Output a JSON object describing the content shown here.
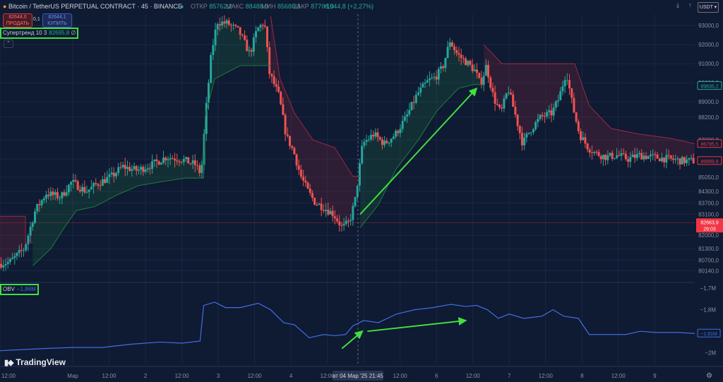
{
  "header": {
    "title": "Bitcoin / TetherUS PERPETUAL CONTRACT · 45 · BINANCE",
    "open_label": "ОТКР",
    "open_value": "85762,2",
    "high_label": "МАКС",
    "high_value": "88488,0",
    "low_label": "МИН",
    "low_value": "85686,3",
    "close_label": "ЗАКР",
    "close_value": "87708,0",
    "change": "+1944,8 (+2,27%)"
  },
  "trade": {
    "sell_price": "82644,0",
    "sell_label": "ПРОДАТЬ",
    "spread": "0,1",
    "buy_price": "82644,1",
    "buy_label": "КУПИТЬ"
  },
  "indicators": {
    "supertrend_label": "Супертренд 10 3",
    "supertrend_value": "82695,8",
    "supertrend_symbol": "∅",
    "obv_label": "OBV",
    "obv_value": "−1,86M"
  },
  "currency": "USDT",
  "logo_text": "TradingView",
  "price_axis": {
    "ticks": [
      "93000,0",
      "92000,0",
      "91000,0",
      "90000,0",
      "89000,0",
      "88200,0",
      "87000,0",
      "86000,0",
      "85050,0",
      "84300,0",
      "83700,0",
      "83100,0",
      "82000,0",
      "81300,0",
      "80700,0",
      "80140,0"
    ],
    "tick_values": [
      93000,
      92000,
      91000,
      90000,
      89000,
      88200,
      87000,
      86000,
      85050,
      84300,
      83700,
      83100,
      82000,
      81300,
      80700,
      80140
    ],
    "labels": [
      {
        "text": "89835,2",
        "value": 89835.2,
        "color": "#22ab94"
      },
      {
        "text": "86795,5",
        "value": 86795.5,
        "color": "#f23645"
      },
      {
        "text": "85899,9",
        "value": 85899.9,
        "color": "#f23645"
      }
    ],
    "current_price": "82663,9",
    "current_value": 82663.9,
    "countdown": "26:03",
    "ymin": 79600,
    "ymax": 93600
  },
  "obv_axis": {
    "ticks": [
      "−1,7M",
      "−1,8M",
      "−1,9M",
      "−2M"
    ],
    "tick_values": [
      -1.7,
      -1.8,
      -1.9,
      -2.0
    ],
    "current_label": "−1,91M",
    "current_value": -1.91,
    "ymin": -2.05,
    "ymax": -1.68
  },
  "time_axis": {
    "labels": [
      "12:00",
      "Мар",
      "12:00",
      "2",
      "12:00",
      "3",
      "12:00",
      "4",
      "12:00",
      "5",
      "12:00",
      "6",
      "12:00",
      "7",
      "12:00",
      "8",
      "12:00",
      "9"
    ],
    "positions": [
      0.0,
      1.0,
      1.5,
      2.0,
      2.5,
      3.0,
      3.5,
      4.0,
      4.5,
      5.0,
      5.5,
      6.0,
      6.5,
      7.0,
      7.5,
      8.0,
      8.5,
      9.0
    ],
    "crosshair_label": "вт 04 Мар '25   21:45",
    "crosshair_pos": 4.92
  },
  "colors": {
    "background": "#0f1a33",
    "up": "#26a69a",
    "down": "#ef5350",
    "supertrend_up": "#1f7a3f",
    "supertrend_down": "#9b2a3e",
    "obv": "#3f6fe0",
    "annotation": "#3fe03f"
  },
  "chart_data": {
    "type": "candlestick",
    "x_unit": "days",
    "x_range": [
      0,
      9.55
    ],
    "price_path": [
      [
        0,
        80500
      ],
      [
        0.15,
        80600
      ],
      [
        0.35,
        81300
      ],
      [
        0.5,
        83300
      ],
      [
        0.65,
        84200
      ],
      [
        0.85,
        84000
      ],
      [
        1.0,
        84800
      ],
      [
        1.2,
        84300
      ],
      [
        1.35,
        84700
      ],
      [
        1.55,
        85100
      ],
      [
        1.7,
        85600
      ],
      [
        1.9,
        85400
      ],
      [
        2.1,
        85700
      ],
      [
        2.3,
        86100
      ],
      [
        2.5,
        86000
      ],
      [
        2.7,
        85700
      ],
      [
        2.78,
        85200
      ],
      [
        2.85,
        88700
      ],
      [
        2.92,
        91500
      ],
      [
        3.0,
        93200
      ],
      [
        3.15,
        93100
      ],
      [
        3.3,
        92700
      ],
      [
        3.45,
        91500
      ],
      [
        3.55,
        92800
      ],
      [
        3.65,
        93200
      ],
      [
        3.72,
        90500
      ],
      [
        3.85,
        89300
      ],
      [
        3.95,
        87200
      ],
      [
        4.05,
        86400
      ],
      [
        4.15,
        85100
      ],
      [
        4.25,
        84300
      ],
      [
        4.35,
        83700
      ],
      [
        4.45,
        83500
      ],
      [
        4.6,
        83100
      ],
      [
        4.72,
        82400
      ],
      [
        4.82,
        82700
      ],
      [
        4.9,
        83900
      ],
      [
        5.0,
        86800
      ],
      [
        5.15,
        87300
      ],
      [
        5.3,
        86800
      ],
      [
        5.45,
        87300
      ],
      [
        5.6,
        88200
      ],
      [
        5.75,
        89400
      ],
      [
        5.9,
        90100
      ],
      [
        6.0,
        90300
      ],
      [
        6.1,
        90800
      ],
      [
        6.2,
        92200
      ],
      [
        6.3,
        91500
      ],
      [
        6.45,
        91000
      ],
      [
        6.55,
        90600
      ],
      [
        6.62,
        89900
      ],
      [
        6.7,
        90900
      ],
      [
        6.8,
        89200
      ],
      [
        6.9,
        88400
      ],
      [
        7.0,
        89700
      ],
      [
        7.1,
        88300
      ],
      [
        7.2,
        86800
      ],
      [
        7.3,
        87500
      ],
      [
        7.45,
        88200
      ],
      [
        7.6,
        88400
      ],
      [
        7.7,
        89200
      ],
      [
        7.8,
        90600
      ],
      [
        7.88,
        88900
      ],
      [
        7.98,
        87300
      ],
      [
        8.1,
        86600
      ],
      [
        8.2,
        86300
      ],
      [
        8.35,
        86100
      ],
      [
        8.5,
        86200
      ],
      [
        8.65,
        86000
      ],
      [
        8.8,
        86200
      ],
      [
        9.0,
        86100
      ],
      [
        9.2,
        86000
      ],
      [
        9.4,
        85900
      ],
      [
        9.55,
        85900
      ]
    ],
    "supertrend": [
      {
        "trend": "down",
        "points": [
          [
            0,
            83000
          ],
          [
            0.35,
            83000
          ],
          [
            0.35,
            81600
          ],
          [
            0.45,
            81600
          ]
        ]
      },
      {
        "trend": "up",
        "points": [
          [
            0.45,
            80400
          ],
          [
            0.7,
            81300
          ],
          [
            0.9,
            82500
          ],
          [
            1.05,
            83300
          ],
          [
            1.3,
            83500
          ],
          [
            1.6,
            84100
          ],
          [
            1.9,
            84600
          ],
          [
            2.2,
            84800
          ],
          [
            2.55,
            85000
          ],
          [
            2.8,
            85000
          ],
          [
            2.82,
            88200
          ],
          [
            2.95,
            90200
          ],
          [
            3.3,
            90900
          ],
          [
            3.72,
            90900
          ]
        ]
      },
      {
        "trend": "down",
        "points": [
          [
            3.72,
            93500
          ],
          [
            3.85,
            90200
          ],
          [
            4.05,
            88400
          ],
          [
            4.3,
            87000
          ],
          [
            4.6,
            86600
          ],
          [
            4.85,
            85100
          ],
          [
            4.95,
            85100
          ]
        ]
      },
      {
        "trend": "up",
        "points": [
          [
            4.95,
            82400
          ],
          [
            5.2,
            83600
          ],
          [
            5.45,
            85500
          ],
          [
            5.75,
            87000
          ],
          [
            6.0,
            88500
          ],
          [
            6.3,
            89700
          ],
          [
            6.5,
            89900
          ],
          [
            6.65,
            89900
          ]
        ]
      },
      {
        "trend": "down",
        "points": [
          [
            6.65,
            92000
          ],
          [
            6.9,
            91000
          ],
          [
            7.5,
            91000
          ],
          [
            7.9,
            91000
          ],
          [
            8.1,
            88800
          ],
          [
            8.4,
            87600
          ],
          [
            8.8,
            87300
          ],
          [
            9.2,
            87100
          ],
          [
            9.55,
            86800
          ]
        ]
      }
    ],
    "obv_path": [
      [
        0,
        -1.99
      ],
      [
        0.3,
        -1.985
      ],
      [
        0.6,
        -1.98
      ],
      [
        1.0,
        -1.975
      ],
      [
        1.4,
        -1.975
      ],
      [
        1.8,
        -1.96
      ],
      [
        2.2,
        -1.95
      ],
      [
        2.5,
        -1.955
      ],
      [
        2.75,
        -1.945
      ],
      [
        2.8,
        -1.78
      ],
      [
        2.95,
        -1.765
      ],
      [
        3.1,
        -1.79
      ],
      [
        3.3,
        -1.79
      ],
      [
        3.55,
        -1.77
      ],
      [
        3.72,
        -1.8
      ],
      [
        3.9,
        -1.86
      ],
      [
        4.05,
        -1.87
      ],
      [
        4.25,
        -1.93
      ],
      [
        4.45,
        -1.915
      ],
      [
        4.6,
        -1.92
      ],
      [
        4.75,
        -1.915
      ],
      [
        4.85,
        -1.875
      ],
      [
        5.0,
        -1.85
      ],
      [
        5.2,
        -1.86
      ],
      [
        5.45,
        -1.82
      ],
      [
        5.7,
        -1.8
      ],
      [
        5.95,
        -1.79
      ],
      [
        6.2,
        -1.775
      ],
      [
        6.4,
        -1.785
      ],
      [
        6.55,
        -1.78
      ],
      [
        6.7,
        -1.8
      ],
      [
        6.85,
        -1.84
      ],
      [
        7.0,
        -1.82
      ],
      [
        7.2,
        -1.84
      ],
      [
        7.45,
        -1.83
      ],
      [
        7.6,
        -1.8
      ],
      [
        7.75,
        -1.83
      ],
      [
        7.95,
        -1.84
      ],
      [
        8.1,
        -1.915
      ],
      [
        8.35,
        -1.915
      ],
      [
        8.6,
        -1.915
      ],
      [
        8.8,
        -1.9
      ],
      [
        9.0,
        -1.905
      ],
      [
        9.3,
        -1.905
      ],
      [
        9.55,
        -1.91
      ]
    ],
    "annotations": [
      {
        "pane": "price",
        "from": [
          4.95,
          83100
        ],
        "to": [
          6.55,
          89700
        ]
      },
      {
        "pane": "obv",
        "from": [
          4.7,
          -1.98
        ],
        "to": [
          4.98,
          -1.9
        ]
      },
      {
        "pane": "obv",
        "from": [
          5.05,
          -1.9
        ],
        "to": [
          6.4,
          -1.85
        ]
      }
    ]
  }
}
